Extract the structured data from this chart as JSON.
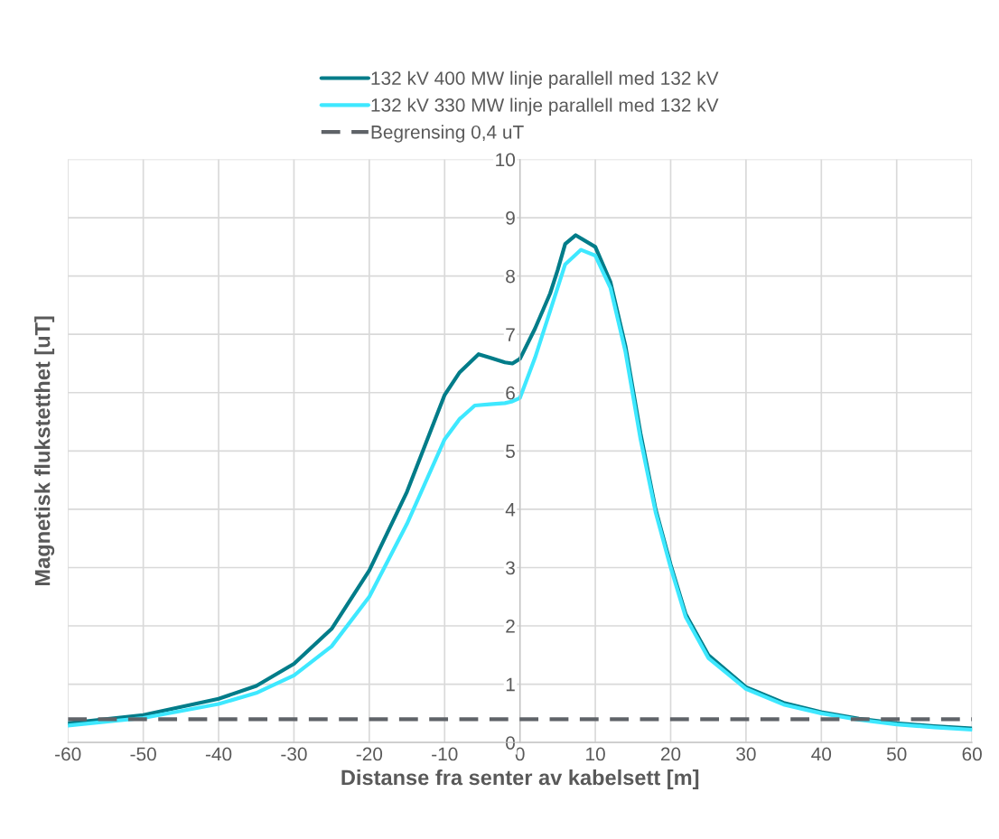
{
  "chart_data": {
    "type": "line",
    "xlabel": "Distanse fra senter av kabelsett [m]",
    "ylabel": "Magnetisk flukstetthet [uT]",
    "xlim": [
      -60,
      60
    ],
    "xticks": [
      -60,
      -50,
      -40,
      -30,
      -20,
      -10,
      0,
      10,
      20,
      30,
      40,
      50,
      60
    ],
    "ylim": [
      0,
      10
    ],
    "yticks": [
      0,
      1,
      2,
      3,
      4,
      5,
      6,
      7,
      8,
      9,
      10
    ],
    "grid": true,
    "legend": "top",
    "line_style": "solid",
    "marker": "none",
    "series": [
      {
        "name": "132 kV 400 MW linje parallell med 132 kV",
        "color": "#007c89",
        "x": [
          -60,
          -50,
          -40,
          -35,
          -30,
          -25,
          -20,
          -15,
          -10,
          -8,
          -5.5,
          -4,
          -2,
          -1,
          0,
          2,
          4,
          5,
          6,
          7.4,
          10,
          12,
          14,
          16,
          18,
          20,
          22,
          25,
          30,
          35,
          40,
          45,
          50,
          55,
          60
        ],
        "values": [
          0.33,
          0.47,
          0.75,
          0.97,
          1.35,
          1.95,
          2.95,
          4.3,
          5.96,
          6.35,
          6.66,
          6.6,
          6.52,
          6.5,
          6.58,
          7.1,
          7.7,
          8.1,
          8.55,
          8.7,
          8.5,
          7.9,
          6.8,
          5.3,
          4.0,
          3.05,
          2.2,
          1.5,
          0.95,
          0.68,
          0.52,
          0.41,
          0.33,
          0.28,
          0.24
        ]
      },
      {
        "name": "132 kV 330 MW linje parallell med 132 kV",
        "color": "#3ee8ff",
        "x": [
          -60,
          -50,
          -40,
          -35,
          -30,
          -25,
          -20,
          -15,
          -10,
          -8,
          -6,
          -4,
          -2,
          -1,
          0,
          2,
          4,
          6,
          8.1,
          10,
          12,
          14,
          16,
          18,
          20,
          22,
          25,
          30,
          35,
          40,
          45,
          50,
          55,
          60
        ],
        "values": [
          0.29,
          0.42,
          0.66,
          0.85,
          1.15,
          1.65,
          2.5,
          3.75,
          5.2,
          5.55,
          5.78,
          5.8,
          5.82,
          5.85,
          5.91,
          6.6,
          7.4,
          8.2,
          8.45,
          8.35,
          7.8,
          6.7,
          5.2,
          3.95,
          3.0,
          2.15,
          1.45,
          0.92,
          0.65,
          0.5,
          0.39,
          0.31,
          0.26,
          0.22
        ]
      }
    ],
    "ref_lines": [
      {
        "axis": "y",
        "value": 0.4,
        "label": "Begrensing 0,4 uT",
        "color": "#5f6368",
        "line_style": "dashed"
      }
    ]
  }
}
